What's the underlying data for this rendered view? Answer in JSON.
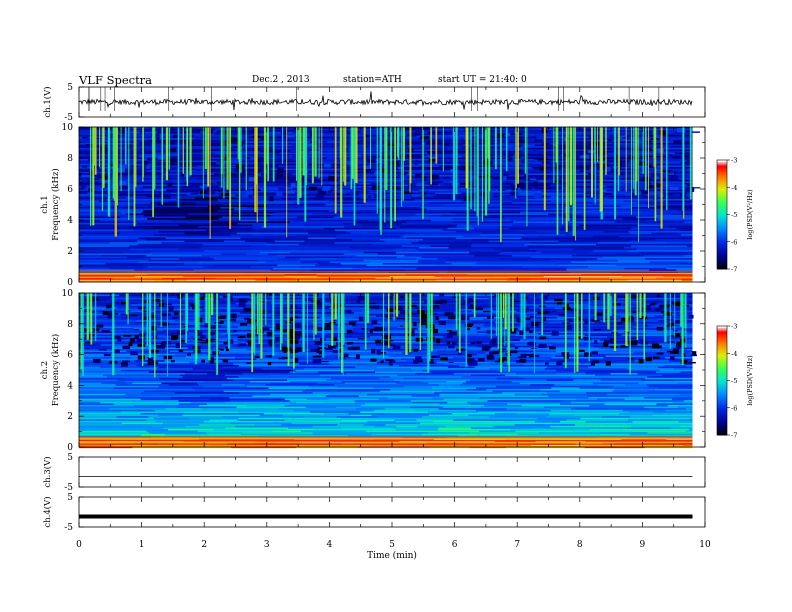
{
  "header": {
    "title": "VLF  Spectra",
    "date": "Dec.2  , 2013",
    "station": "station=ATH",
    "start": "start  UT  =   21:40: 0"
  },
  "chart_data": [
    {
      "type": "line",
      "name": "ch1-waveform",
      "ylabel": "ch.1(V)",
      "ylim": [
        -5,
        5
      ],
      "yticks": [
        "5",
        "-5"
      ],
      "level": 0,
      "style": "noisy"
    },
    {
      "type": "heatmap",
      "name": "ch1-spectrogram",
      "ylabel": "ch.1\nFrequency  (kHz)",
      "ylabel_lines": [
        "ch.1",
        "Frequency  (kHz)"
      ],
      "ylim": [
        0,
        10
      ],
      "yticks": [
        "0",
        "2",
        "4",
        "6",
        "8",
        "10"
      ],
      "colorbar": {
        "label": "log(PSD(V²/Hz)",
        "range": [
          -7,
          -3
        ],
        "ticks": [
          "-3",
          "-4",
          "-5",
          "-6",
          "-7"
        ]
      }
    },
    {
      "type": "heatmap",
      "name": "ch2-spectrogram",
      "ylabel": "ch.2\nFrequency  (kHz)",
      "ylabel_lines": [
        "ch.2",
        "Frequency  (kHz)"
      ],
      "ylim": [
        0,
        10
      ],
      "yticks": [
        "0",
        "2",
        "4",
        "6",
        "8",
        "10"
      ],
      "colorbar": {
        "label": "log(PSD(V²/Hz)",
        "range": [
          -7,
          -3
        ],
        "ticks": [
          "-3",
          "-4",
          "-5",
          "-6",
          "-7"
        ]
      }
    },
    {
      "type": "line",
      "name": "ch3-waveform",
      "ylabel": "ch.3(V)",
      "ylim": [
        -5,
        5
      ],
      "yticks": [
        "5",
        "-5"
      ],
      "level": -1.5,
      "style": "flat"
    },
    {
      "type": "line",
      "name": "ch4-waveform",
      "ylabel": "ch.4(V)",
      "ylim": [
        -5,
        5
      ],
      "yticks": [
        "5",
        "-5"
      ],
      "level": -1.5,
      "style": "thick"
    }
  ],
  "xaxis": {
    "label": "Time  (min)",
    "range": [
      0,
      10
    ],
    "ticks": [
      "0",
      "1",
      "2",
      "3",
      "4",
      "5",
      "6",
      "7",
      "8",
      "9",
      "10"
    ],
    "data_end": 9.8
  }
}
